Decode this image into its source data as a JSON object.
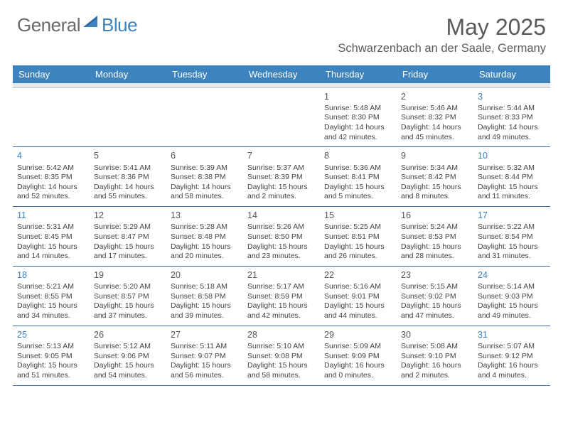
{
  "logo": {
    "general": "General",
    "blue": "Blue"
  },
  "title": "May 2025",
  "location": "Schwarzenbach an der Saale, Germany",
  "colors": {
    "header_bg": "#3d83bd",
    "header_text": "#ffffff",
    "weekend_daynum": "#3d83bd",
    "border": "#3a6fa0",
    "spacer_bg": "#e9e9e9",
    "body_text": "#444444"
  },
  "dayNames": [
    "Sunday",
    "Monday",
    "Tuesday",
    "Wednesday",
    "Thursday",
    "Friday",
    "Saturday"
  ],
  "weeks": [
    [
      null,
      null,
      null,
      null,
      {
        "n": "1",
        "sr": "5:48 AM",
        "ss": "8:30 PM",
        "dl": "14 hours and 42 minutes."
      },
      {
        "n": "2",
        "sr": "5:46 AM",
        "ss": "8:32 PM",
        "dl": "14 hours and 45 minutes."
      },
      {
        "n": "3",
        "sr": "5:44 AM",
        "ss": "8:33 PM",
        "dl": "14 hours and 49 minutes."
      }
    ],
    [
      {
        "n": "4",
        "sr": "5:42 AM",
        "ss": "8:35 PM",
        "dl": "14 hours and 52 minutes."
      },
      {
        "n": "5",
        "sr": "5:41 AM",
        "ss": "8:36 PM",
        "dl": "14 hours and 55 minutes."
      },
      {
        "n": "6",
        "sr": "5:39 AM",
        "ss": "8:38 PM",
        "dl": "14 hours and 58 minutes."
      },
      {
        "n": "7",
        "sr": "5:37 AM",
        "ss": "8:39 PM",
        "dl": "15 hours and 2 minutes."
      },
      {
        "n": "8",
        "sr": "5:36 AM",
        "ss": "8:41 PM",
        "dl": "15 hours and 5 minutes."
      },
      {
        "n": "9",
        "sr": "5:34 AM",
        "ss": "8:42 PM",
        "dl": "15 hours and 8 minutes."
      },
      {
        "n": "10",
        "sr": "5:32 AM",
        "ss": "8:44 PM",
        "dl": "15 hours and 11 minutes."
      }
    ],
    [
      {
        "n": "11",
        "sr": "5:31 AM",
        "ss": "8:45 PM",
        "dl": "15 hours and 14 minutes."
      },
      {
        "n": "12",
        "sr": "5:29 AM",
        "ss": "8:47 PM",
        "dl": "15 hours and 17 minutes."
      },
      {
        "n": "13",
        "sr": "5:28 AM",
        "ss": "8:48 PM",
        "dl": "15 hours and 20 minutes."
      },
      {
        "n": "14",
        "sr": "5:26 AM",
        "ss": "8:50 PM",
        "dl": "15 hours and 23 minutes."
      },
      {
        "n": "15",
        "sr": "5:25 AM",
        "ss": "8:51 PM",
        "dl": "15 hours and 26 minutes."
      },
      {
        "n": "16",
        "sr": "5:24 AM",
        "ss": "8:53 PM",
        "dl": "15 hours and 28 minutes."
      },
      {
        "n": "17",
        "sr": "5:22 AM",
        "ss": "8:54 PM",
        "dl": "15 hours and 31 minutes."
      }
    ],
    [
      {
        "n": "18",
        "sr": "5:21 AM",
        "ss": "8:55 PM",
        "dl": "15 hours and 34 minutes."
      },
      {
        "n": "19",
        "sr": "5:20 AM",
        "ss": "8:57 PM",
        "dl": "15 hours and 37 minutes."
      },
      {
        "n": "20",
        "sr": "5:18 AM",
        "ss": "8:58 PM",
        "dl": "15 hours and 39 minutes."
      },
      {
        "n": "21",
        "sr": "5:17 AM",
        "ss": "8:59 PM",
        "dl": "15 hours and 42 minutes."
      },
      {
        "n": "22",
        "sr": "5:16 AM",
        "ss": "9:01 PM",
        "dl": "15 hours and 44 minutes."
      },
      {
        "n": "23",
        "sr": "5:15 AM",
        "ss": "9:02 PM",
        "dl": "15 hours and 47 minutes."
      },
      {
        "n": "24",
        "sr": "5:14 AM",
        "ss": "9:03 PM",
        "dl": "15 hours and 49 minutes."
      }
    ],
    [
      {
        "n": "25",
        "sr": "5:13 AM",
        "ss": "9:05 PM",
        "dl": "15 hours and 51 minutes."
      },
      {
        "n": "26",
        "sr": "5:12 AM",
        "ss": "9:06 PM",
        "dl": "15 hours and 54 minutes."
      },
      {
        "n": "27",
        "sr": "5:11 AM",
        "ss": "9:07 PM",
        "dl": "15 hours and 56 minutes."
      },
      {
        "n": "28",
        "sr": "5:10 AM",
        "ss": "9:08 PM",
        "dl": "15 hours and 58 minutes."
      },
      {
        "n": "29",
        "sr": "5:09 AM",
        "ss": "9:09 PM",
        "dl": "16 hours and 0 minutes."
      },
      {
        "n": "30",
        "sr": "5:08 AM",
        "ss": "9:10 PM",
        "dl": "16 hours and 2 minutes."
      },
      {
        "n": "31",
        "sr": "5:07 AM",
        "ss": "9:12 PM",
        "dl": "16 hours and 4 minutes."
      }
    ]
  ],
  "labels": {
    "sunrise": "Sunrise: ",
    "sunset": "Sunset: ",
    "daylight": "Daylight: "
  }
}
